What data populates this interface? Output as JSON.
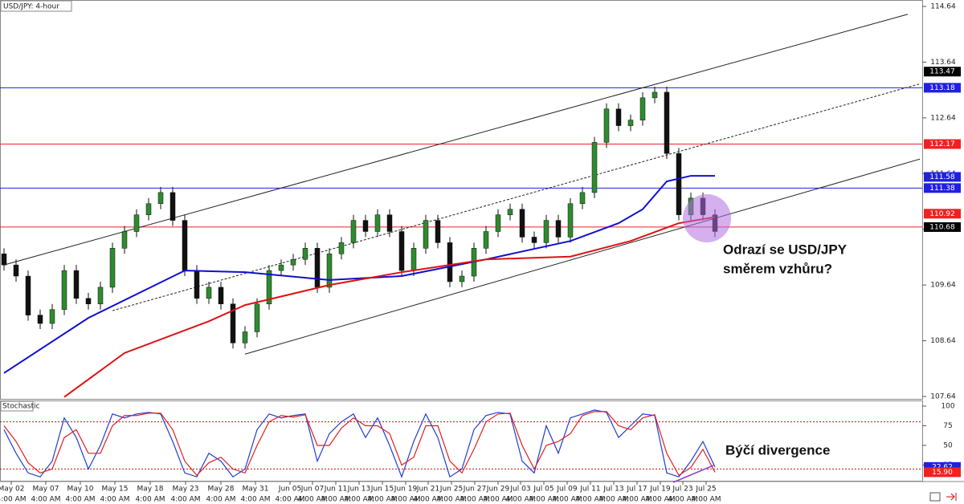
{
  "chart_data": [
    {
      "type": "candlestick",
      "title": "USD/JPY: 4-hour",
      "open": [
        110.2,
        110.0,
        109.8,
        109.1,
        108.95,
        109.2,
        109.9,
        109.4,
        109.3,
        109.6,
        110.3,
        110.6,
        110.9,
        111.1,
        111.3,
        110.8,
        109.9,
        109.4,
        109.6,
        109.3,
        108.6,
        108.8,
        109.3,
        109.9,
        110.0,
        110.1,
        110.3,
        109.6,
        110.2,
        110.4,
        110.8,
        110.6,
        110.9,
        110.6,
        109.9,
        110.3,
        110.8,
        110.4,
        109.7,
        109.8,
        110.3,
        110.6,
        110.9,
        111.0,
        110.5,
        110.4,
        110.8,
        110.5,
        111.1,
        111.3,
        112.2,
        112.8,
        112.5,
        112.6,
        113.0,
        113.1,
        112.0,
        110.9,
        111.2,
        110.9
      ],
      "high": [
        110.3,
        110.1,
        109.9,
        109.2,
        109.3,
        110.0,
        110.0,
        109.5,
        109.7,
        110.4,
        110.7,
        111.0,
        111.2,
        111.4,
        111.4,
        110.9,
        110.0,
        109.7,
        109.7,
        109.4,
        108.9,
        109.4,
        110.0,
        110.1,
        110.2,
        110.4,
        110.4,
        110.3,
        110.5,
        110.9,
        110.9,
        111.0,
        111.0,
        110.7,
        110.4,
        110.9,
        110.9,
        110.5,
        109.9,
        110.4,
        110.7,
        111.0,
        111.1,
        111.1,
        110.6,
        110.9,
        110.9,
        111.2,
        111.4,
        112.3,
        112.9,
        112.9,
        112.7,
        113.1,
        113.2,
        113.2,
        112.1,
        111.3,
        111.3,
        111.0
      ],
      "low": [
        109.9,
        109.7,
        109.0,
        108.85,
        108.85,
        109.1,
        109.3,
        109.2,
        109.2,
        109.5,
        110.2,
        110.5,
        110.8,
        111.0,
        110.7,
        109.8,
        109.3,
        109.3,
        109.2,
        108.5,
        108.5,
        108.7,
        109.2,
        109.8,
        109.9,
        110.0,
        109.5,
        109.5,
        110.1,
        110.3,
        110.5,
        110.5,
        110.5,
        109.8,
        109.8,
        110.2,
        110.3,
        109.6,
        109.6,
        109.7,
        110.2,
        110.5,
        110.8,
        110.4,
        110.3,
        110.3,
        110.4,
        110.4,
        111.0,
        111.2,
        112.1,
        112.4,
        112.4,
        112.5,
        112.9,
        111.9,
        110.8,
        110.8,
        110.8,
        110.5
      ],
      "close": [
        110.0,
        109.8,
        109.1,
        108.95,
        109.2,
        109.9,
        109.4,
        109.3,
        109.6,
        110.3,
        110.6,
        110.9,
        111.1,
        111.3,
        110.8,
        109.9,
        109.4,
        109.6,
        109.3,
        108.6,
        108.8,
        109.3,
        109.9,
        110.0,
        110.1,
        110.3,
        109.6,
        110.2,
        110.4,
        110.8,
        110.6,
        110.9,
        110.6,
        109.9,
        110.3,
        110.8,
        110.4,
        109.7,
        109.8,
        110.3,
        110.6,
        110.9,
        111.0,
        110.5,
        110.4,
        110.8,
        110.5,
        111.1,
        111.3,
        112.2,
        112.8,
        112.5,
        112.6,
        113.0,
        113.1,
        112.0,
        110.9,
        111.2,
        110.9,
        110.6
      ],
      "up_color": "#2e8b2e",
      "down_color": "#111111",
      "ylim": [
        107.64,
        114.64
      ],
      "yticks": [
        107.64,
        108.64,
        109.64,
        110.64,
        111.64,
        112.64,
        113.64,
        114.64
      ],
      "moving_averages": [
        {
          "color": "#1010cc",
          "x": [
            0,
            7,
            15,
            20,
            27,
            33,
            40,
            47,
            51,
            53,
            55,
            57,
            59
          ],
          "values": [
            108.06,
            109.05,
            109.9,
            109.87,
            109.73,
            109.8,
            110.1,
            110.43,
            110.75,
            111.0,
            111.5,
            111.6,
            111.6
          ]
        },
        {
          "color": "#dd1111",
          "x": [
            5,
            10,
            17,
            20,
            27,
            33,
            40,
            47,
            52,
            56,
            59
          ],
          "values": [
            107.63,
            108.42,
            108.99,
            109.28,
            109.64,
            109.87,
            110.1,
            110.15,
            110.43,
            110.75,
            110.86
          ]
        }
      ],
      "levels": [
        {
          "value": 113.18,
          "color": "#2020dd"
        },
        {
          "value": 112.17,
          "color": "#ee2222"
        },
        {
          "value": 111.38,
          "color": "#2020dd"
        },
        {
          "value": 110.68,
          "color": "#ee2222"
        }
      ],
      "trendlines": [
        {
          "x": [
            0,
            75
          ],
          "values": [
            110.0,
            114.5
          ],
          "dashed": false
        },
        {
          "x": [
            20,
            76
          ],
          "values": [
            108.4,
            111.9
          ],
          "dashed": false
        },
        {
          "x": [
            9,
            76
          ],
          "values": [
            109.18,
            113.25
          ],
          "dashed": true
        }
      ],
      "price_labels": [
        {
          "value": 113.47,
          "color": "#000000"
        },
        {
          "value": 113.18,
          "color": "#2020dd"
        },
        {
          "value": 112.17,
          "color": "#ee2222"
        },
        {
          "value": 111.58,
          "color": "#2020dd"
        },
        {
          "value": 111.38,
          "color": "#2020dd"
        },
        {
          "value": 110.92,
          "color": "#ee2222"
        },
        {
          "value": 110.68,
          "color": "#000000"
        }
      ],
      "annotation": [
        "Odrazí se USD/JPY",
        "směrem vzhůru?"
      ],
      "dates": [
        "May 02",
        "May 07",
        "May 10",
        "May 15",
        "May 18",
        "May 23",
        "May 28",
        "May 31",
        "Jun 05",
        "Jun 07",
        "Jun 11",
        "Jun 13",
        "Jun 15",
        "Jun 19",
        "Jun 21",
        "Jun 25",
        "Jun 27",
        "Jun 29",
        "Jul 03",
        "Jul 05",
        "Jul 09",
        "Jul 11",
        "Jul 13",
        "Jul 17",
        "Jul 19",
        "Jul 23",
        "Jul 25"
      ],
      "time_label": "4:00 AM"
    },
    {
      "type": "line",
      "title": "Stochastic",
      "series": [
        {
          "color": "#1f3fd0",
          "values": [
            70,
            40,
            15,
            10,
            30,
            85,
            60,
            20,
            50,
            90,
            85,
            90,
            92,
            90,
            55,
            15,
            10,
            40,
            30,
            10,
            20,
            70,
            90,
            85,
            88,
            90,
            30,
            65,
            80,
            90,
            60,
            85,
            50,
            10,
            55,
            90,
            60,
            10,
            20,
            70,
            88,
            92,
            90,
            30,
            15,
            75,
            40,
            85,
            90,
            95,
            92,
            60,
            75,
            90,
            88,
            15,
            10,
            30,
            55,
            22.62
          ]
        },
        {
          "color": "#e02020",
          "values": [
            75,
            55,
            28,
            15,
            20,
            60,
            70,
            40,
            40,
            75,
            88,
            88,
            91,
            91,
            70,
            30,
            12,
            28,
            35,
            20,
            15,
            50,
            80,
            88,
            86,
            89,
            50,
            50,
            72,
            85,
            75,
            75,
            65,
            25,
            35,
            75,
            75,
            30,
            15,
            45,
            80,
            90,
            91,
            50,
            20,
            50,
            55,
            65,
            88,
            93,
            93,
            75,
            70,
            85,
            89,
            40,
            12,
            22,
            45,
            15.9
          ]
        }
      ],
      "ylim": [
        0,
        100
      ],
      "yticks": [
        25,
        50,
        75,
        100
      ],
      "levels": [
        80,
        20
      ],
      "value_labels": [
        {
          "value": 22.62,
          "label": "22.62",
          "color": "#2020dd"
        },
        {
          "value": 15.9,
          "label": "15.90",
          "color": "#ee2222"
        }
      ],
      "annotation": "Býčí divergence"
    }
  ]
}
